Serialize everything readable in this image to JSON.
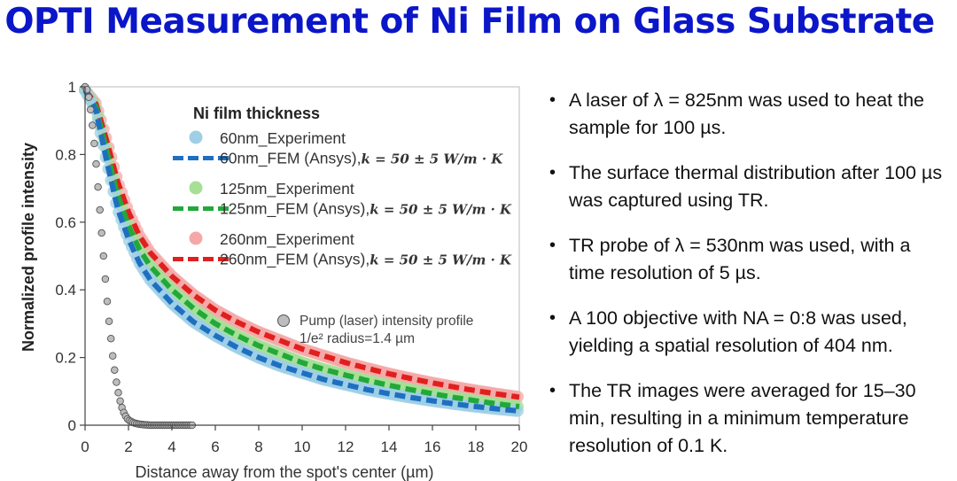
{
  "title": "OPTI Measurement of Ni Film on Glass Substrate",
  "bullets": [
    "A laser of λ = 825nm was used to heat the sample for 100 µs.",
    "The surface thermal distribution after 100 µs was captured using TR.",
    "TR probe of λ = 530nm was used, with a time resolution of 5 µs.",
    "A 100 objective with NA = 0:8 was used, yielding a spatial resolution of 404 nm.",
    "The TR images were averaged for 15–30 min, resulting in a minimum temperature resolution of 0.1 K."
  ],
  "chart_data": {
    "type": "scatter",
    "xlabel": "Distance away from the spot's center (µm)",
    "ylabel": "Normalized profile intensity",
    "xlim": [
      0,
      20
    ],
    "ylim": [
      0,
      1
    ],
    "xticks": [
      0,
      2,
      4,
      6,
      8,
      10,
      12,
      14,
      16,
      18,
      20
    ],
    "yticks": [
      0,
      0.2,
      0.4,
      0.6,
      0.8,
      1
    ],
    "ytick_labels": [
      "0",
      "0.2",
      "0.4",
      "0.6",
      "0.8",
      "1"
    ],
    "grid": false,
    "legend_title": "Ni film thickness",
    "legend_position": "top-right",
    "fem_label_suffix": "k = 50 ± 5 W/m · K",
    "colors": {
      "exp60": "#9ecfe6",
      "fem60": "#1f6fc0",
      "exp125": "#a6df95",
      "fem125": "#22a83a",
      "exp260": "#f4a8a8",
      "fem260": "#e0201e",
      "pump": "#bdbdbd"
    },
    "series": [
      {
        "name": "60nm_Experiment",
        "kind": "experiment",
        "color": "exp60",
        "x": [
          0,
          0.5,
          1,
          1.5,
          2,
          2.5,
          3,
          4,
          5,
          6,
          7,
          8,
          9,
          10,
          11,
          12,
          13,
          14,
          15,
          16,
          17,
          18,
          19,
          20
        ],
        "y": [
          0.99,
          0.93,
          0.78,
          0.64,
          0.55,
          0.48,
          0.43,
          0.36,
          0.305,
          0.265,
          0.23,
          0.2,
          0.175,
          0.155,
          0.135,
          0.12,
          0.105,
          0.093,
          0.082,
          0.072,
          0.063,
          0.055,
          0.048,
          0.042
        ]
      },
      {
        "name": "60nm_FEM (Ansys),",
        "kind": "fem",
        "color": "fem60",
        "x": [
          0,
          0.5,
          1,
          1.5,
          2,
          2.5,
          3,
          4,
          5,
          6,
          7,
          8,
          9,
          10,
          11,
          12,
          13,
          14,
          15,
          16,
          17,
          18,
          19,
          20
        ],
        "y": [
          0.99,
          0.93,
          0.78,
          0.64,
          0.55,
          0.48,
          0.43,
          0.36,
          0.305,
          0.265,
          0.23,
          0.2,
          0.175,
          0.155,
          0.135,
          0.12,
          0.105,
          0.093,
          0.082,
          0.072,
          0.063,
          0.055,
          0.048,
          0.042
        ]
      },
      {
        "name": "125nm_Experiment",
        "kind": "experiment",
        "color": "exp125",
        "x": [
          0,
          0.5,
          1,
          1.5,
          2,
          2.5,
          3,
          4,
          5,
          6,
          7,
          8,
          9,
          10,
          11,
          12,
          13,
          14,
          15,
          16,
          17,
          18,
          19,
          20
        ],
        "y": [
          0.99,
          0.94,
          0.81,
          0.68,
          0.59,
          0.52,
          0.47,
          0.4,
          0.345,
          0.3,
          0.265,
          0.235,
          0.21,
          0.185,
          0.165,
          0.148,
          0.132,
          0.118,
          0.105,
          0.093,
          0.082,
          0.072,
          0.063,
          0.055
        ]
      },
      {
        "name": "125nm_FEM (Ansys),",
        "kind": "fem",
        "color": "fem125",
        "x": [
          0,
          0.5,
          1,
          1.5,
          2,
          2.5,
          3,
          4,
          5,
          6,
          7,
          8,
          9,
          10,
          11,
          12,
          13,
          14,
          15,
          16,
          17,
          18,
          19,
          20
        ],
        "y": [
          0.99,
          0.94,
          0.81,
          0.68,
          0.59,
          0.52,
          0.47,
          0.4,
          0.345,
          0.3,
          0.265,
          0.235,
          0.21,
          0.185,
          0.165,
          0.148,
          0.132,
          0.118,
          0.105,
          0.093,
          0.082,
          0.072,
          0.063,
          0.055
        ]
      },
      {
        "name": "260nm_Experiment",
        "kind": "experiment",
        "color": "exp260",
        "x": [
          0,
          0.5,
          1,
          1.5,
          2,
          2.5,
          3,
          4,
          5,
          6,
          7,
          8,
          9,
          10,
          11,
          12,
          13,
          14,
          15,
          16,
          17,
          18,
          19,
          20
        ],
        "y": [
          0.99,
          0.95,
          0.84,
          0.72,
          0.63,
          0.56,
          0.51,
          0.44,
          0.385,
          0.34,
          0.305,
          0.275,
          0.25,
          0.225,
          0.205,
          0.185,
          0.168,
          0.152,
          0.138,
          0.125,
          0.113,
          0.102,
          0.092,
          0.083
        ]
      },
      {
        "name": "260nm_FEM (Ansys),",
        "kind": "fem",
        "color": "fem260",
        "x": [
          0,
          0.5,
          1,
          1.5,
          2,
          2.5,
          3,
          4,
          5,
          6,
          7,
          8,
          9,
          10,
          11,
          12,
          13,
          14,
          15,
          16,
          17,
          18,
          19,
          20
        ],
        "y": [
          0.99,
          0.95,
          0.84,
          0.72,
          0.63,
          0.56,
          0.51,
          0.44,
          0.385,
          0.34,
          0.305,
          0.275,
          0.25,
          0.225,
          0.205,
          0.185,
          0.168,
          0.152,
          0.138,
          0.125,
          0.113,
          0.102,
          0.092,
          0.083
        ]
      },
      {
        "name": "Pump (laser) intensity profile",
        "kind": "pump",
        "color": "pump",
        "x": [
          0,
          0.1,
          0.2,
          0.3,
          0.4,
          0.5,
          0.6,
          0.7,
          0.8,
          0.9,
          1.0,
          1.1,
          1.2,
          1.3,
          1.4,
          1.5,
          1.6,
          1.7,
          1.8,
          1.9,
          2.0,
          2.2,
          2.4,
          2.6,
          2.8,
          3.0,
          3.5,
          4.0,
          4.5,
          5.0
        ],
        "y": [
          1.0,
          0.99,
          0.96,
          0.91,
          0.85,
          0.78,
          0.7,
          0.62,
          0.54,
          0.46,
          0.38,
          0.31,
          0.25,
          0.19,
          0.145,
          0.105,
          0.075,
          0.052,
          0.035,
          0.023,
          0.015,
          0.008,
          0.004,
          0.002,
          0.001,
          0.0,
          0.0,
          0.0,
          0.0,
          0.0
        ]
      }
    ],
    "pump_label": "Pump (laser) intensity profile",
    "pump_radius_label": "1/e² radius=1.4 µm"
  }
}
